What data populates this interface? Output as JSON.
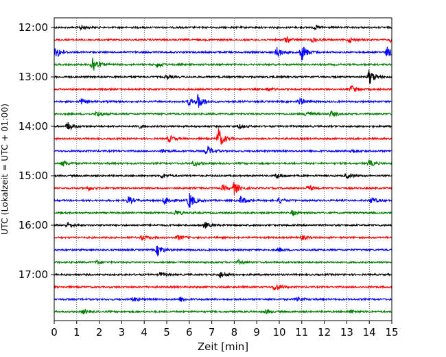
{
  "chart_data": {
    "type": "line",
    "title": "",
    "xlabel": "Zeit  [min]",
    "ylabel": "UTC (Lokalzeit = UTC + 01:00)",
    "xlim": [
      0,
      15
    ],
    "x_ticks": [
      "0",
      "1",
      "2",
      "3",
      "4",
      "5",
      "6",
      "7",
      "8",
      "9",
      "10",
      "11",
      "12",
      "13",
      "14",
      "15"
    ],
    "y_ticks": [
      "12:00",
      "13:00",
      "14:00",
      "15:00",
      "16:00",
      "17:00"
    ],
    "grid": "vertical-dotted",
    "trace_interval_min": 15,
    "colors": [
      "#000000",
      "#ff0000",
      "#0000ff",
      "#008000"
    ],
    "traces": [
      {
        "start": "12:00",
        "color": "#000000",
        "events": [
          {
            "t": 1.2,
            "a": 0.25
          },
          {
            "t": 11.6,
            "a": 0.2
          }
        ]
      },
      {
        "start": "12:15",
        "color": "#ff0000",
        "events": [
          {
            "t": 10.3,
            "a": 0.3
          },
          {
            "t": 11.5,
            "a": 0.25
          },
          {
            "t": 13.1,
            "a": 0.25
          },
          {
            "t": 15.0,
            "a": 0.3
          }
        ]
      },
      {
        "start": "12:30",
        "color": "#0000ff",
        "events": [
          {
            "t": 0.1,
            "a": 0.6
          },
          {
            "t": 9.9,
            "a": 0.55
          },
          {
            "t": 11.0,
            "a": 0.9
          },
          {
            "t": 14.8,
            "a": 0.55
          }
        ]
      },
      {
        "start": "12:45",
        "color": "#008000",
        "events": [
          {
            "t": 1.7,
            "a": 1.0
          },
          {
            "t": 4.6,
            "a": 0.3
          }
        ]
      },
      {
        "start": "13:00",
        "color": "#000000",
        "events": [
          {
            "t": 5.0,
            "a": 0.25
          },
          {
            "t": 14.0,
            "a": 0.85
          }
        ]
      },
      {
        "start": "13:15",
        "color": "#ff0000",
        "events": [
          {
            "t": 9.5,
            "a": 0.2
          },
          {
            "t": 13.2,
            "a": 0.45
          }
        ]
      },
      {
        "start": "13:30",
        "color": "#0000ff",
        "events": [
          {
            "t": 1.2,
            "a": 0.3
          },
          {
            "t": 6.0,
            "a": 0.45
          },
          {
            "t": 6.4,
            "a": 0.75
          },
          {
            "t": 10.9,
            "a": 0.4
          }
        ]
      },
      {
        "start": "13:45",
        "color": "#008000",
        "events": [
          {
            "t": 1.9,
            "a": 0.3
          },
          {
            "t": 11.2,
            "a": 0.35
          },
          {
            "t": 12.3,
            "a": 0.3
          }
        ]
      },
      {
        "start": "14:00",
        "color": "#000000",
        "events": [
          {
            "t": 0.6,
            "a": 0.45
          },
          {
            "t": 3.7,
            "a": 0.2
          },
          {
            "t": 8.2,
            "a": 0.2
          }
        ]
      },
      {
        "start": "14:15",
        "color": "#ff0000",
        "events": [
          {
            "t": 5.1,
            "a": 0.4
          },
          {
            "t": 7.3,
            "a": 1.1
          }
        ]
      },
      {
        "start": "14:30",
        "color": "#0000ff",
        "events": [
          {
            "t": 4.8,
            "a": 0.2
          },
          {
            "t": 6.8,
            "a": 0.55
          },
          {
            "t": 13.2,
            "a": 0.25
          }
        ]
      },
      {
        "start": "14:45",
        "color": "#008000",
        "events": [
          {
            "t": 0.4,
            "a": 0.3
          },
          {
            "t": 6.2,
            "a": 0.3
          },
          {
            "t": 14.0,
            "a": 0.35
          }
        ]
      },
      {
        "start": "15:00",
        "color": "#000000",
        "events": [
          {
            "t": 4.8,
            "a": 0.25
          },
          {
            "t": 9.9,
            "a": 0.3
          },
          {
            "t": 13.0,
            "a": 0.25
          }
        ]
      },
      {
        "start": "15:15",
        "color": "#ff0000",
        "events": [
          {
            "t": 1.5,
            "a": 0.25
          },
          {
            "t": 7.5,
            "a": 0.3
          },
          {
            "t": 8.0,
            "a": 0.65
          },
          {
            "t": 11.3,
            "a": 0.3
          }
        ]
      },
      {
        "start": "15:30",
        "color": "#0000ff",
        "events": [
          {
            "t": 3.3,
            "a": 0.4
          },
          {
            "t": 4.9,
            "a": 0.45
          },
          {
            "t": 6.0,
            "a": 0.9
          },
          {
            "t": 8.3,
            "a": 0.45
          },
          {
            "t": 10.0,
            "a": 0.3
          },
          {
            "t": 14.1,
            "a": 0.35
          }
        ]
      },
      {
        "start": "15:45",
        "color": "#008000",
        "events": [
          {
            "t": 5.4,
            "a": 0.3
          },
          {
            "t": 10.6,
            "a": 0.25
          }
        ]
      },
      {
        "start": "16:00",
        "color": "#000000",
        "events": [
          {
            "t": 0.6,
            "a": 0.3
          },
          {
            "t": 6.7,
            "a": 0.3
          }
        ]
      },
      {
        "start": "16:15",
        "color": "#ff0000",
        "events": [
          {
            "t": 3.9,
            "a": 0.25
          },
          {
            "t": 5.5,
            "a": 0.25
          },
          {
            "t": 11.0,
            "a": 0.2
          }
        ]
      },
      {
        "start": "16:30",
        "color": "#0000ff",
        "events": [
          {
            "t": 4.6,
            "a": 0.6
          },
          {
            "t": 10.0,
            "a": 0.2
          }
        ]
      },
      {
        "start": "16:45",
        "color": "#008000",
        "events": [
          {
            "t": 1.9,
            "a": 0.2
          },
          {
            "t": 8.2,
            "a": 0.2
          }
        ]
      },
      {
        "start": "17:00",
        "color": "#000000",
        "events": [
          {
            "t": 7.4,
            "a": 0.35
          },
          {
            "t": 4.7,
            "a": 0.25
          }
        ]
      },
      {
        "start": "17:15",
        "color": "#ff0000",
        "events": [
          {
            "t": 9.8,
            "a": 0.45
          }
        ]
      },
      {
        "start": "17:30",
        "color": "#0000ff",
        "events": [
          {
            "t": 3.5,
            "a": 0.25
          },
          {
            "t": 5.6,
            "a": 0.25
          },
          {
            "t": 10.8,
            "a": 0.25
          }
        ]
      },
      {
        "start": "17:45",
        "color": "#008000",
        "events": [
          {
            "t": 1.3,
            "a": 0.2
          },
          {
            "t": 9.4,
            "a": 0.2
          },
          {
            "t": 13.2,
            "a": 0.2
          }
        ]
      }
    ]
  }
}
